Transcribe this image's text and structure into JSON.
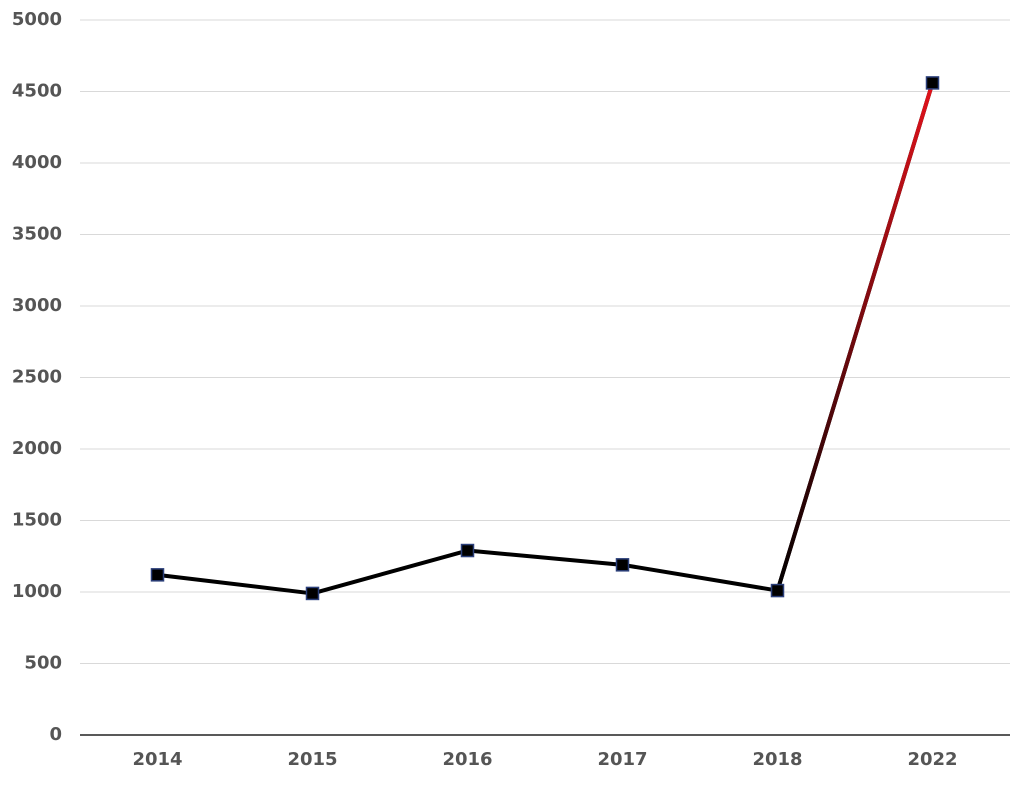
{
  "chart_data": {
    "type": "line",
    "categories": [
      "2014",
      "2015",
      "2016",
      "2017",
      "2018",
      "2022"
    ],
    "series": [
      {
        "color": "#000000",
        "values": [
          1120,
          990,
          1290,
          1190,
          1010,
          4560
        ]
      }
    ],
    "accent_color": "#e3121b",
    "marker_edge_color": "#2b3f7a",
    "ylim": [
      0,
      5000
    ],
    "yticks": [
      0,
      500,
      1000,
      1500,
      2000,
      2500,
      3000,
      3500,
      4000,
      4500,
      5000
    ],
    "grid": true
  }
}
